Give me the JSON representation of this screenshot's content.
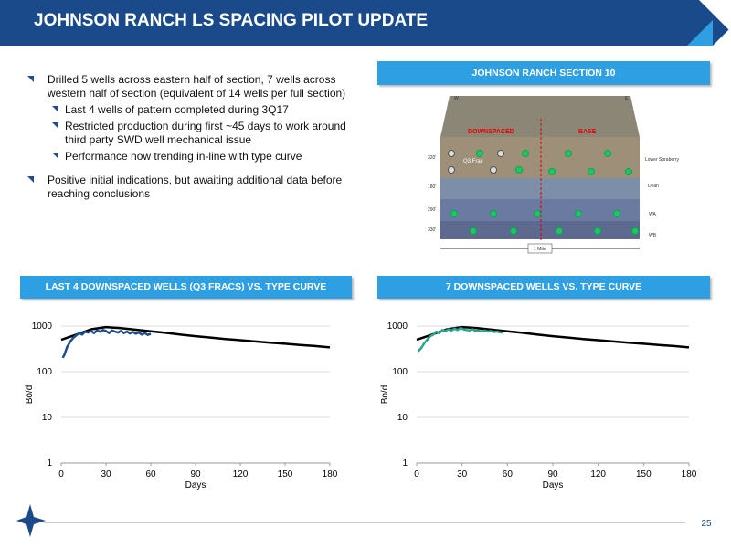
{
  "header": {
    "title": "JOHNSON RANCH LS SPACING PILOT UPDATE"
  },
  "bullets": [
    {
      "text": "Drilled 5 wells across eastern half of section, 7 wells across western half of section (equivalent of 14 wells per full section)",
      "sub": [
        "Last 4 wells of pattern completed during 3Q17",
        "Restricted production during first ~45 days to work around third party SWD well mechanical issue",
        "Performance now trending in-line with type curve"
      ]
    },
    {
      "text": "Positive initial indications, but awaiting additional data before reaching conclusions"
    }
  ],
  "figure": {
    "title": "JOHNSON RANCH SECTION 10",
    "labels": {
      "west": "W",
      "east": "E",
      "downspaced": "DOWNSPACED",
      "base": "BASE",
      "q3_frac": "Q3 Frac",
      "scale": "1 Mile",
      "zones": [
        "Lower Spraberry",
        "Dean",
        "WA",
        "WB"
      ],
      "depths": [
        "320'",
        "180'",
        "290'",
        "330'"
      ]
    }
  },
  "chart_data": [
    {
      "type": "line",
      "title": "LAST 4 DOWNSPACED WELLS (Q3 FRACS) VS. TYPE CURVE",
      "xlabel": "Days",
      "ylabel": "Bo/d",
      "xlim": [
        0,
        180
      ],
      "xticks": [
        0,
        30,
        60,
        90,
        120,
        150,
        180
      ],
      "ylim": [
        1,
        1000
      ],
      "yticks": [
        1,
        10,
        100,
        1000
      ],
      "log_y": true,
      "grid": true,
      "series": [
        {
          "color": "#000000",
          "x": [
            0,
            10,
            20,
            30,
            40,
            50,
            60,
            70,
            80,
            90,
            100,
            110,
            120,
            130,
            140,
            150,
            160,
            170,
            180
          ],
          "values": [
            500,
            650,
            850,
            950,
            900,
            830,
            770,
            710,
            650,
            600,
            560,
            520,
            490,
            460,
            430,
            410,
            385,
            365,
            340
          ]
        },
        {
          "color": "#1f4e8c",
          "x": [
            1,
            2,
            4,
            6,
            8,
            10,
            12,
            14,
            16,
            18,
            20,
            22,
            24,
            26,
            28,
            30,
            32,
            34,
            36,
            38,
            40,
            42,
            44,
            46,
            48,
            50,
            52,
            54,
            56,
            58,
            60
          ],
          "values": [
            200,
            230,
            350,
            450,
            550,
            620,
            700,
            650,
            750,
            720,
            780,
            700,
            800,
            750,
            820,
            780,
            700,
            800,
            760,
            720,
            780,
            700,
            760,
            690,
            740,
            680,
            720,
            650,
            700,
            640,
            680
          ]
        }
      ]
    },
    {
      "type": "line",
      "title": "7 DOWNSPACED WELLS VS. TYPE CURVE",
      "xlabel": "Days",
      "ylabel": "Bo/d",
      "xlim": [
        0,
        180
      ],
      "xticks": [
        0,
        30,
        60,
        90,
        120,
        150,
        180
      ],
      "ylim": [
        1,
        1000
      ],
      "yticks": [
        1,
        10,
        100,
        1000
      ],
      "log_y": true,
      "grid": true,
      "series": [
        {
          "color": "#000000",
          "x": [
            0,
            10,
            20,
            30,
            40,
            50,
            60,
            70,
            80,
            90,
            100,
            110,
            120,
            130,
            140,
            150,
            160,
            170,
            180
          ],
          "values": [
            500,
            650,
            850,
            950,
            900,
            830,
            770,
            710,
            650,
            600,
            560,
            520,
            490,
            460,
            430,
            410,
            385,
            365,
            340
          ]
        },
        {
          "color": "#2aa58c",
          "x": [
            1,
            3,
            5,
            7,
            9,
            11,
            13,
            15,
            17,
            19,
            21,
            23,
            25,
            27,
            29,
            31,
            33,
            35,
            37,
            39,
            41,
            43,
            45,
            47,
            49,
            51,
            53,
            55,
            57
          ],
          "values": [
            280,
            330,
            420,
            500,
            600,
            650,
            750,
            700,
            820,
            780,
            850,
            800,
            880,
            820,
            900,
            850,
            820,
            800,
            850,
            780,
            800,
            760,
            800,
            760,
            780,
            740,
            760,
            730,
            720
          ]
        }
      ]
    }
  ],
  "footer": {
    "page": "25"
  }
}
